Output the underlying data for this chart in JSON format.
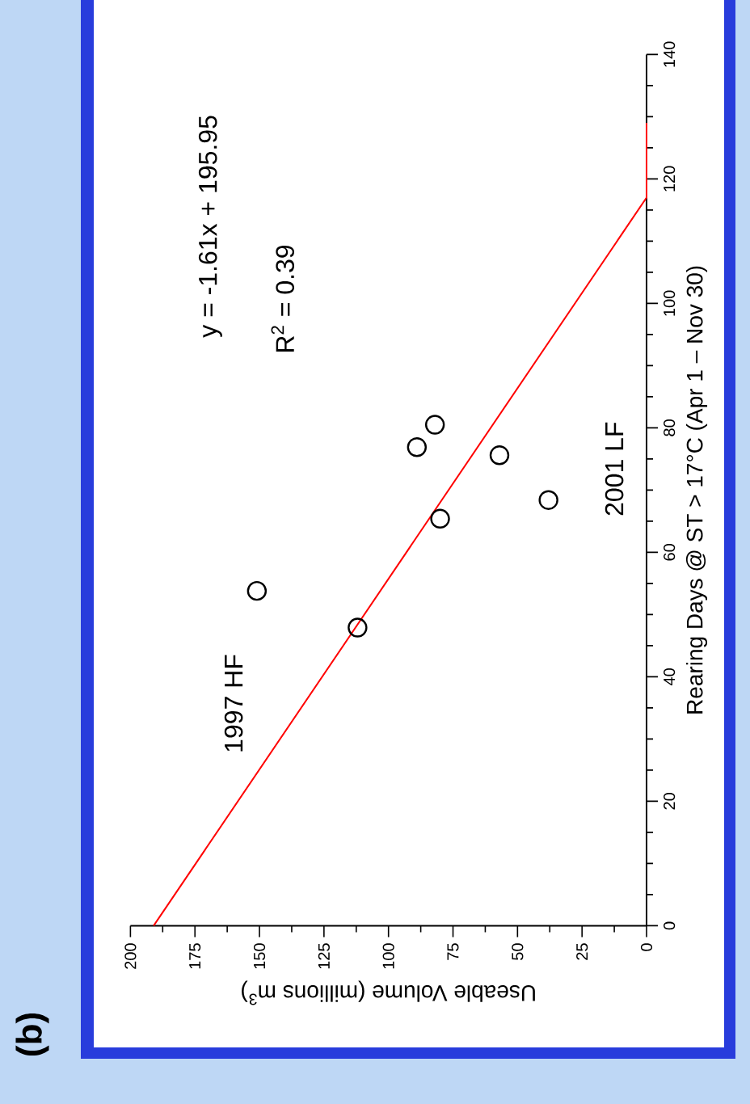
{
  "chart_data": {
    "type": "scatter",
    "xlabel": "Useable  Volume (millions m$^{3}$)",
    "ylabel": "Rearing Days @ ST > 17°C (Apr 1 – Nov 30)",
    "xlim": [
      200,
      0
    ],
    "xticks": [
      0,
      25,
      50,
      75,
      100,
      125,
      150,
      175,
      200
    ],
    "ylim": [
      0,
      140
    ],
    "yticks": [
      0,
      20,
      40,
      60,
      80,
      100,
      120,
      140
    ],
    "series": [
      {
        "type": "scatter",
        "color": "#000000",
        "marker": "circle",
        "x": [
          151,
          112,
          80,
          38,
          89,
          82,
          57
        ],
        "values": [
          53.8,
          47.9,
          65.4,
          68.4,
          76.9,
          80.5,
          75.6
        ]
      },
      {
        "type": "line",
        "color": "#ff0000",
        "marker": "none",
        "x": [
          191,
          0,
          0
        ],
        "values": [
          0,
          117,
          129
        ]
      }
    ],
    "annotations": [
      "y = -1.61x + 195.95",
      "R$^{2}$ = 0.39",
      "1997 HF",
      "2001 LF",
      "(b)"
    ]
  }
}
